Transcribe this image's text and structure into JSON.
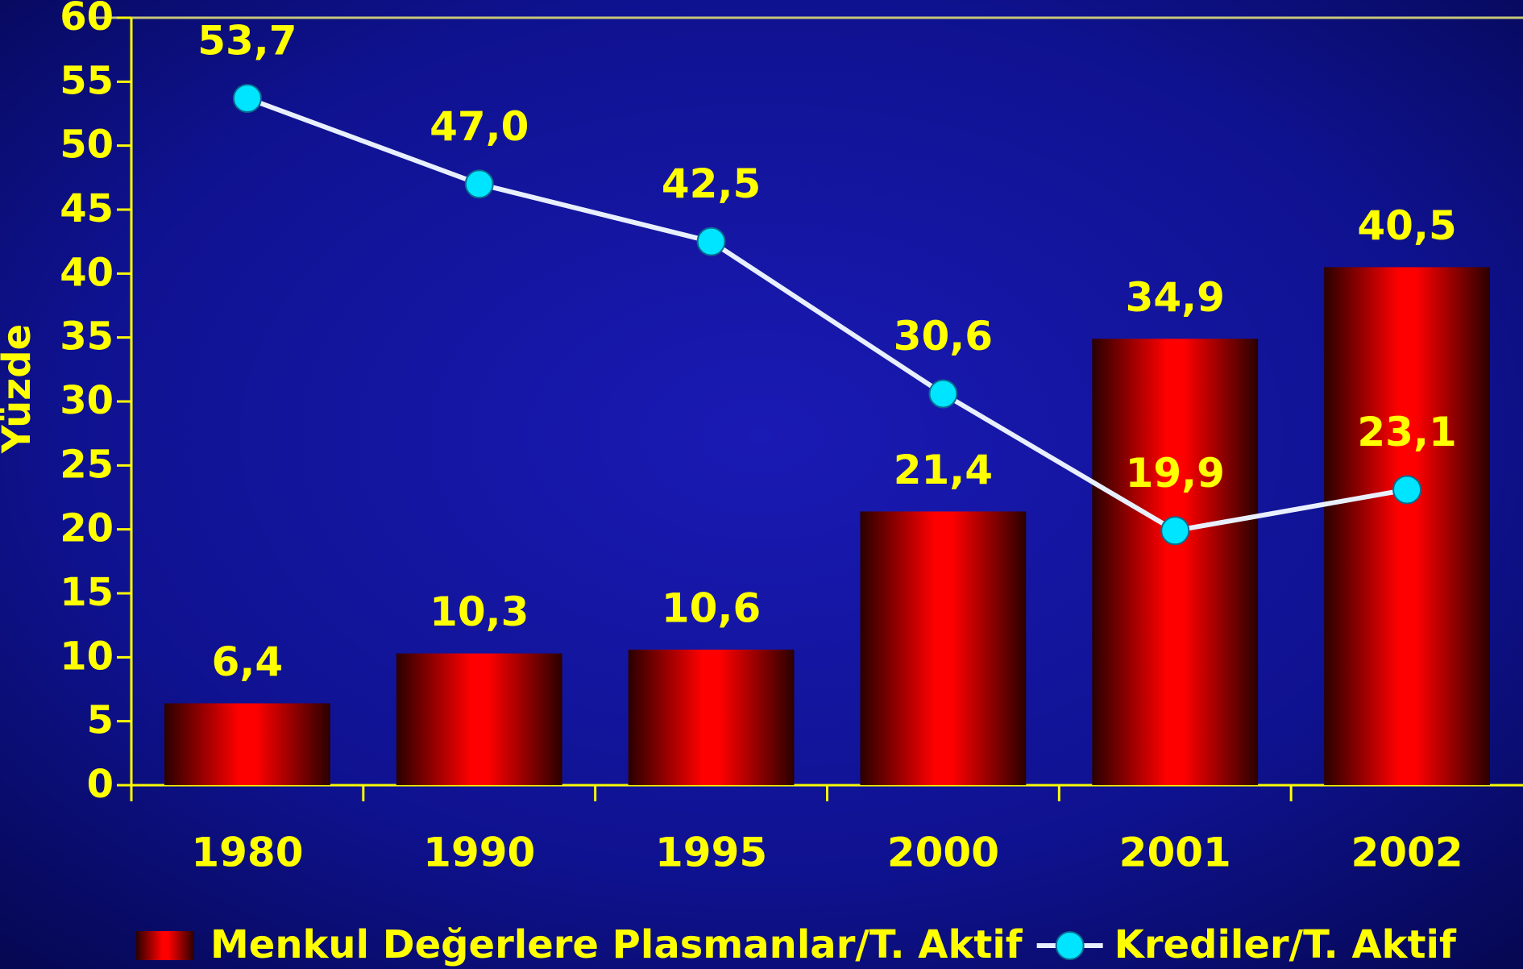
{
  "chart_data": {
    "type": "bar",
    "y_label": "Yüzde",
    "categories": [
      "1980",
      "1990",
      "1995",
      "2000",
      "2001",
      "2002"
    ],
    "series": [
      {
        "name": "Menkul Değerlere Plasmanlar/T. Aktif",
        "type": "bar",
        "color": "#ff0000",
        "values": [
          6.4,
          10.3,
          10.6,
          21.4,
          34.9,
          40.5
        ],
        "value_labels": [
          "6,4",
          "10,3",
          "10,6",
          "21,4",
          "34,9",
          "40,5"
        ]
      },
      {
        "name": "Krediler/T. Aktif",
        "type": "line",
        "color": "#00e5ff",
        "values": [
          53.7,
          47.0,
          42.5,
          30.6,
          19.9,
          23.1
        ],
        "value_labels": [
          "53,7",
          "47,0",
          "42,5",
          "30,6",
          "19,9",
          "23,1"
        ]
      }
    ],
    "ylim": [
      0,
      60
    ],
    "yticks": [
      0,
      5,
      10,
      15,
      20,
      25,
      30,
      35,
      40,
      45,
      50,
      55,
      60
    ]
  }
}
